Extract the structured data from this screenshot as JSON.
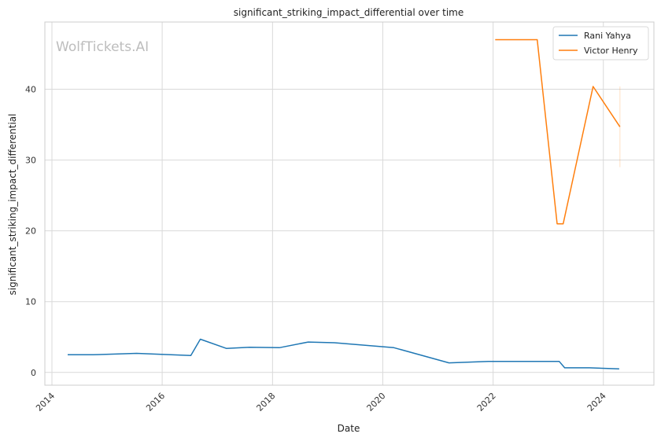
{
  "chart_data": {
    "type": "line",
    "title": "significant_striking_impact_differential over time",
    "xlabel": "Date",
    "ylabel": "significant_striking_impact_differential",
    "watermark": "WolfTickets.AI",
    "xlim": [
      "2013-11-15",
      "2024-12-01"
    ],
    "ylim": [
      -1.8,
      49.5
    ],
    "x_ticks": [
      "2014",
      "2016",
      "2018",
      "2020",
      "2022",
      "2024"
    ],
    "y_ticks": [
      0,
      10,
      20,
      30,
      40
    ],
    "grid": true,
    "legend_position": "top-right",
    "colors": {
      "Rani Yahya": "#1f77b4",
      "Victor Henry": "#ff7f0e"
    },
    "series": [
      {
        "name": "Rani Yahya",
        "color": "#1f77b4",
        "points": [
          [
            "2014-04-15",
            2.5
          ],
          [
            "2014-10-01",
            2.5
          ],
          [
            "2015-07-15",
            2.7
          ],
          [
            "2016-07-09",
            2.4
          ],
          [
            "2016-09-10",
            4.7
          ],
          [
            "2017-03-01",
            3.4
          ],
          [
            "2017-08-01",
            3.55
          ],
          [
            "2018-02-15",
            3.5
          ],
          [
            "2018-08-25",
            4.3
          ],
          [
            "2019-02-15",
            4.2
          ],
          [
            "2020-03-15",
            3.5
          ],
          [
            "2021-03-15",
            1.35
          ],
          [
            "2021-12-01",
            1.55
          ],
          [
            "2023-03-15",
            1.55
          ],
          [
            "2023-04-20",
            0.65
          ],
          [
            "2023-10-01",
            0.65
          ],
          [
            "2024-04-15",
            0.5
          ]
        ]
      },
      {
        "name": "Victor Henry",
        "color": "#ff7f0e",
        "points": [
          [
            "2022-01-15",
            47.0
          ],
          [
            "2022-10-20",
            47.0
          ],
          [
            "2023-03-01",
            21.0
          ],
          [
            "2023-04-10",
            21.0
          ],
          [
            "2023-10-25",
            40.4
          ],
          [
            "2024-04-20",
            34.7
          ]
        ],
        "band": {
          "date": "2024-04-20",
          "low": 29.0,
          "high": 40.4
        }
      }
    ]
  }
}
